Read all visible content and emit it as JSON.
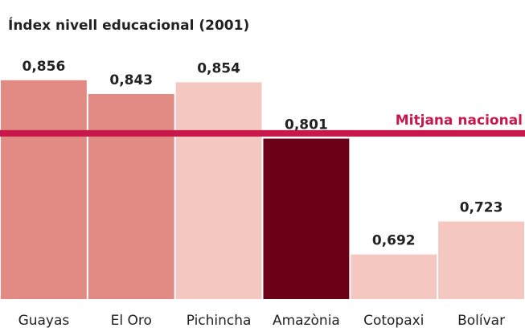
{
  "chart_data": {
    "type": "bar",
    "title": "Índex nivell educacional (2001)",
    "categories": [
      "Guayas",
      "El Oro",
      "Pichincha",
      "Amazònia",
      "Cotopaxi",
      "Bolívar"
    ],
    "values": [
      0.856,
      0.843,
      0.854,
      0.801,
      0.692,
      0.723
    ],
    "value_labels": [
      "0,856",
      "0,843",
      "0,854",
      "0,801",
      "0,692",
      "0,723"
    ],
    "colors": [
      "#e28b85",
      "#e28b85",
      "#f4c8c1",
      "#6b0016",
      "#f4c8c1",
      "#f4c8c1"
    ],
    "ylim": [
      0.65,
      0.93
    ],
    "reference_line": {
      "label": "Mitjana nacional",
      "value": 0.806,
      "color": "#c8174a"
    }
  }
}
